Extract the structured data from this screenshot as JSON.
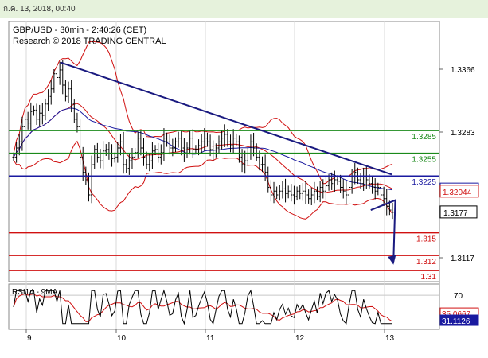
{
  "header": {
    "timestamp": "ก.ค. 13, 2018, 00:40"
  },
  "chart_data": [
    {
      "type": "candlestick",
      "title": "GBP/USD - 30min - 2:40:26 (CET)",
      "subtitle": "Research © 2018 TRADING CENTRAL",
      "x_ticks": [
        "9",
        "10",
        "11",
        "12",
        "13"
      ],
      "y_ticks": [
        "1.3366",
        "1.3283",
        "1.3117"
      ],
      "ylim": [
        1.3095,
        1.342
      ],
      "levels": [
        {
          "value": 1.3285,
          "label": "1.3285",
          "color": "#1a8a1a"
        },
        {
          "value": 1.3255,
          "label": "1.3255",
          "color": "#1a8a1a"
        },
        {
          "value": 1.3225,
          "label": "1.3225",
          "color": "#1a1aa0"
        },
        {
          "value": 1.315,
          "label": "1.315",
          "color": "#d01010"
        },
        {
          "value": 1.312,
          "label": "1.312",
          "color": "#d01010"
        },
        {
          "value": 1.31,
          "label": "1.31",
          "color": "#d01010"
        }
      ],
      "price_badges": [
        {
          "label": "1.32072",
          "value": 1.32072,
          "color": "#1a1aa0"
        },
        {
          "label": "1.32044",
          "value": 1.32044,
          "color": "#d01010"
        },
        {
          "label": "1.3177",
          "value": 1.3177,
          "color": "#000000"
        }
      ],
      "trendline": {
        "from": [
          9.38,
          1.3375
        ],
        "to": [
          13.08,
          1.3227
        ],
        "color": "#1a1a80"
      },
      "forecast_arrow": {
        "from": [
          13.12,
          1.3193
        ],
        "mid": [
          12.94,
          1.3138
        ],
        "to": [
          13.1,
          1.3112
        ]
      },
      "close": [
        1.325,
        1.3262,
        1.327,
        1.329,
        1.33,
        1.3295,
        1.331,
        1.3312,
        1.33,
        1.3308,
        1.3305,
        1.332,
        1.333,
        1.334,
        1.336,
        1.3355,
        1.3365,
        1.3345,
        1.333,
        1.334,
        1.332,
        1.33,
        1.329,
        1.325,
        1.323,
        1.322,
        1.32,
        1.324,
        1.326,
        1.325,
        1.3245,
        1.3258,
        1.326,
        1.3255,
        1.3248,
        1.325,
        1.3262,
        1.327,
        1.324,
        1.3235,
        1.3245,
        1.325,
        1.3256,
        1.3275,
        1.3262,
        1.325,
        1.324,
        1.3245,
        1.3258,
        1.326,
        1.325,
        1.3256,
        1.3275,
        1.327,
        1.3262,
        1.3262,
        1.327,
        1.3275,
        1.3262,
        1.3255,
        1.3262,
        1.3275,
        1.326,
        1.326,
        1.3265,
        1.327,
        1.3275,
        1.327,
        1.326,
        1.3255,
        1.3262,
        1.327,
        1.3275,
        1.328,
        1.327,
        1.3265,
        1.3275,
        1.327,
        1.325,
        1.324,
        1.3245,
        1.3255,
        1.327,
        1.3262,
        1.325,
        1.324,
        1.324,
        1.323,
        1.321,
        1.32,
        1.3205,
        1.32,
        1.3205,
        1.3208,
        1.3202,
        1.3205,
        1.32,
        1.3198,
        1.3205,
        1.3202,
        1.3205,
        1.32,
        1.3195,
        1.32,
        1.3205,
        1.3198,
        1.321,
        1.3205,
        1.3212,
        1.322,
        1.3215,
        1.322,
        1.3218,
        1.321,
        1.3205,
        1.32,
        1.321,
        1.3225,
        1.323,
        1.322,
        1.3215,
        1.3225,
        1.322,
        1.3215,
        1.321,
        1.3205,
        1.321,
        1.32,
        1.3195,
        1.3185,
        1.318,
        1.3177
      ]
    },
    {
      "type": "line",
      "title": "RSI14 - 9MA",
      "y_ticks": [
        "70"
      ],
      "ylim": [
        15,
        85
      ],
      "badges": [
        {
          "label": "35.0667",
          "value": 35.0667,
          "color": "#d01010"
        },
        {
          "label": "31.1126",
          "value": 31.1126,
          "color": "#1a1aa0"
        }
      ]
    }
  ]
}
